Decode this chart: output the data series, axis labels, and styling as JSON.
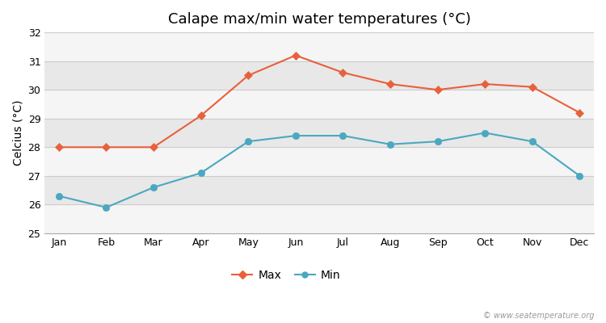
{
  "title": "Calape max/min water temperatures (°C)",
  "ylabel": "Celcius (°C)",
  "months": [
    "Jan",
    "Feb",
    "Mar",
    "Apr",
    "May",
    "Jun",
    "Jul",
    "Aug",
    "Sep",
    "Oct",
    "Nov",
    "Dec"
  ],
  "max_temps": [
    28.0,
    28.0,
    28.0,
    29.1,
    30.5,
    31.2,
    30.6,
    30.2,
    30.0,
    30.2,
    30.1,
    29.2
  ],
  "min_temps": [
    26.3,
    25.9,
    26.6,
    27.1,
    28.2,
    28.4,
    28.4,
    28.1,
    28.2,
    28.5,
    28.2,
    27.0
  ],
  "max_color": "#e8603c",
  "min_color": "#4aa8c0",
  "ylim": [
    25,
    32
  ],
  "yticks": [
    25,
    26,
    27,
    28,
    29,
    30,
    31,
    32
  ],
  "fig_bg_color": "#ffffff",
  "band_colors": [
    "#f5f5f5",
    "#e8e8e8"
  ],
  "watermark": "© www.seatemperature.org",
  "legend_labels": [
    "Max",
    "Min"
  ],
  "title_fontsize": 13,
  "axis_fontsize": 9,
  "ylabel_fontsize": 10
}
